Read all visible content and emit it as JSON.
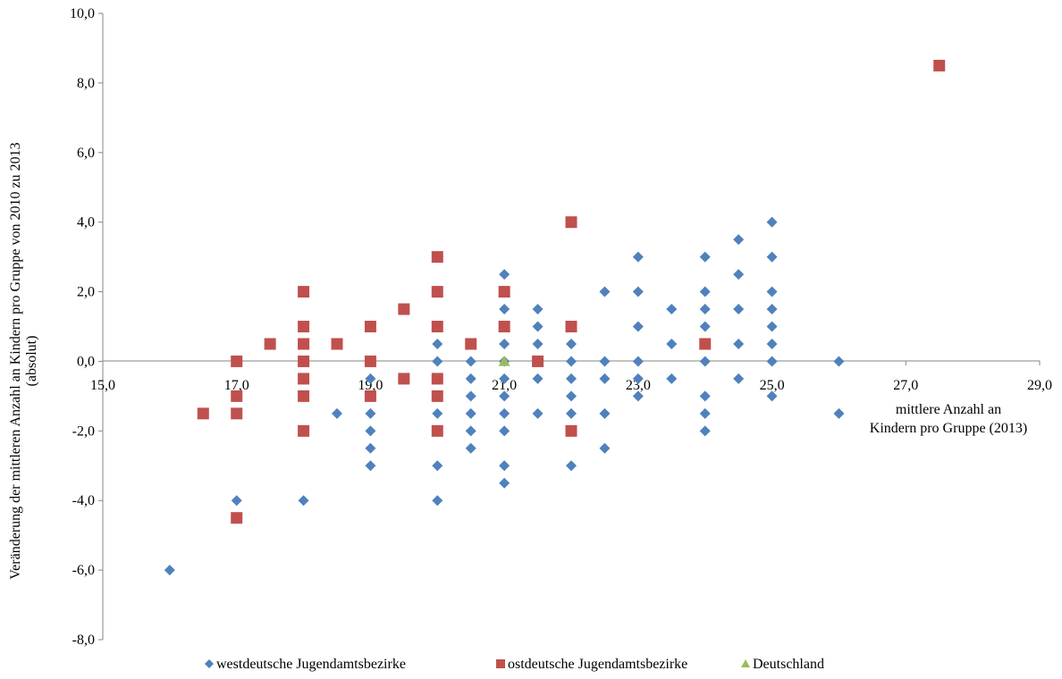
{
  "chart_data": {
    "type": "scatter",
    "xlabel_lines": [
      "mittlere Anzahl an",
      "Kindern pro Gruppe (2013)"
    ],
    "ylabel_lines": [
      "Veränderung der mittleren Anzahl an Kindern pro Gruppe von 2010 zu 2013",
      "(absolut)"
    ],
    "xlim": [
      15,
      29
    ],
    "ylim": [
      -8,
      10
    ],
    "x_ticks": [
      "15,0",
      "17,0",
      "19,0",
      "21,0",
      "23,0",
      "25,0",
      "27,0",
      "29,0"
    ],
    "y_ticks": [
      "10,0",
      "8,0",
      "6,0",
      "4,0",
      "2,0",
      "0,0",
      "-2,0",
      "-4,0",
      "-6,0",
      "-8,0"
    ],
    "grid": false,
    "legend_position": "bottom",
    "series": [
      {
        "name": "westdeutsche Jugendamtsbezirke",
        "marker": "diamond",
        "color": "#4F81BD",
        "points": [
          [
            16,
            -6
          ],
          [
            17,
            -4
          ],
          [
            18,
            -4
          ],
          [
            18.5,
            -1.5
          ],
          [
            19,
            -0.5
          ],
          [
            19,
            -1.5
          ],
          [
            19,
            -2
          ],
          [
            19,
            -2.5
          ],
          [
            19,
            -3
          ],
          [
            20,
            0.5
          ],
          [
            20,
            0
          ],
          [
            20,
            -0.5
          ],
          [
            20,
            -1
          ],
          [
            20,
            -1.5
          ],
          [
            20,
            -2
          ],
          [
            20,
            -3
          ],
          [
            20,
            -4
          ],
          [
            20.5,
            0
          ],
          [
            20.5,
            -0.5
          ],
          [
            20.5,
            -1
          ],
          [
            20.5,
            -1.5
          ],
          [
            20.5,
            -2
          ],
          [
            20.5,
            -2.5
          ],
          [
            21,
            2.5
          ],
          [
            21,
            1.5
          ],
          [
            21,
            1
          ],
          [
            21,
            0.5
          ],
          [
            21,
            0
          ],
          [
            21,
            -0.5
          ],
          [
            21,
            -1
          ],
          [
            21,
            -1.5
          ],
          [
            21,
            -2
          ],
          [
            21,
            -3
          ],
          [
            21,
            -3.5
          ],
          [
            21.5,
            1.5
          ],
          [
            21.5,
            1
          ],
          [
            21.5,
            0.5
          ],
          [
            21.5,
            -0.5
          ],
          [
            21.5,
            -1.5
          ],
          [
            22,
            0.5
          ],
          [
            22,
            0
          ],
          [
            22,
            -0.5
          ],
          [
            22,
            -1
          ],
          [
            22,
            -1.5
          ],
          [
            22,
            -3
          ],
          [
            22.5,
            2
          ],
          [
            22.5,
            0
          ],
          [
            22.5,
            -0.5
          ],
          [
            22.5,
            -1.5
          ],
          [
            22.5,
            -2.5
          ],
          [
            23,
            3
          ],
          [
            23,
            2
          ],
          [
            23,
            1
          ],
          [
            23,
            0
          ],
          [
            23,
            -0.5
          ],
          [
            23,
            -1
          ],
          [
            23.5,
            1.5
          ],
          [
            23.5,
            0.5
          ],
          [
            23.5,
            -0.5
          ],
          [
            24,
            3
          ],
          [
            24,
            2
          ],
          [
            24,
            1.5
          ],
          [
            24,
            1
          ],
          [
            24,
            0
          ],
          [
            24,
            -1
          ],
          [
            24,
            -1.5
          ],
          [
            24,
            -2
          ],
          [
            24.5,
            3.5
          ],
          [
            24.5,
            2.5
          ],
          [
            24.5,
            1.5
          ],
          [
            24.5,
            0.5
          ],
          [
            24.5,
            -0.5
          ],
          [
            25,
            4
          ],
          [
            25,
            3
          ],
          [
            25,
            2
          ],
          [
            25,
            1.5
          ],
          [
            25,
            1
          ],
          [
            25,
            0.5
          ],
          [
            25,
            0
          ],
          [
            25,
            -1
          ],
          [
            26,
            0
          ],
          [
            26,
            -1.5
          ]
        ]
      },
      {
        "name": "ostdeutsche Jugendamtsbezirke",
        "marker": "square",
        "color": "#C0504D",
        "points": [
          [
            16.5,
            -1.5
          ],
          [
            17,
            0
          ],
          [
            17,
            -1
          ],
          [
            17,
            -1.5
          ],
          [
            17,
            -4.5
          ],
          [
            17.5,
            0.5
          ],
          [
            18,
            2
          ],
          [
            18,
            1
          ],
          [
            18,
            0.5
          ],
          [
            18,
            0
          ],
          [
            18,
            -0.5
          ],
          [
            18,
            -1
          ],
          [
            18,
            -2
          ],
          [
            18.5,
            0.5
          ],
          [
            19,
            1
          ],
          [
            19,
            0
          ],
          [
            19,
            -1
          ],
          [
            19.5,
            1.5
          ],
          [
            19.5,
            -0.5
          ],
          [
            20,
            3
          ],
          [
            20,
            2
          ],
          [
            20,
            1
          ],
          [
            20,
            -0.5
          ],
          [
            20,
            -1
          ],
          [
            20,
            -2
          ],
          [
            20.5,
            0.5
          ],
          [
            21,
            2
          ],
          [
            21,
            1
          ],
          [
            21.5,
            0
          ],
          [
            22,
            4
          ],
          [
            22,
            1
          ],
          [
            22,
            -2
          ],
          [
            24,
            0.5
          ],
          [
            27.5,
            8.5
          ]
        ]
      },
      {
        "name": "Deutschland",
        "marker": "triangle",
        "color": "#9BBB59",
        "points": [
          [
            21,
            0
          ]
        ]
      }
    ]
  }
}
